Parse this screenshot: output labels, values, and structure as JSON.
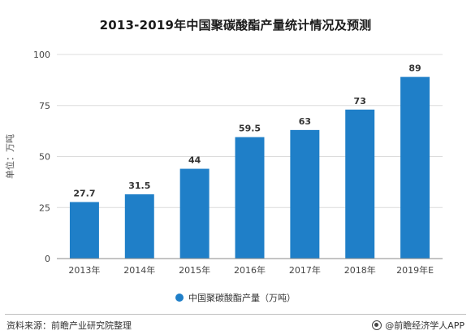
{
  "title": "2013-2019年中国聚碳酸酯产量统计情况及预测",
  "colors": {
    "bar": "#1f7fc8",
    "grid": "#dcdcdc",
    "axis": "#888888"
  },
  "chart_data": {
    "type": "bar",
    "categories": [
      "2013年",
      "2014年",
      "2015年",
      "2016年",
      "2017年",
      "2018年",
      "2019年E"
    ],
    "series": [
      {
        "name": "中国聚碳酸酯产量（万吨）",
        "values": [
          27.7,
          31.5,
          44,
          59.5,
          63,
          73,
          89
        ]
      }
    ],
    "data_labels": [
      "27.7",
      "31.5",
      "44",
      "59.5",
      "63",
      "73",
      "89"
    ],
    "ylabel": "单位：万吨",
    "ylim": [
      0,
      100
    ],
    "yticks": [
      0,
      25,
      50,
      75,
      100
    ],
    "grid": true,
    "legend_position": "bottom"
  },
  "legend": {
    "label": "中国聚碳酸酯产量（万吨）"
  },
  "footer": {
    "source": "资料来源：前瞻产业研究院整理",
    "brand": "@前瞻经济学人APP",
    "brand_icon": "qianzhan-logo-icon"
  }
}
